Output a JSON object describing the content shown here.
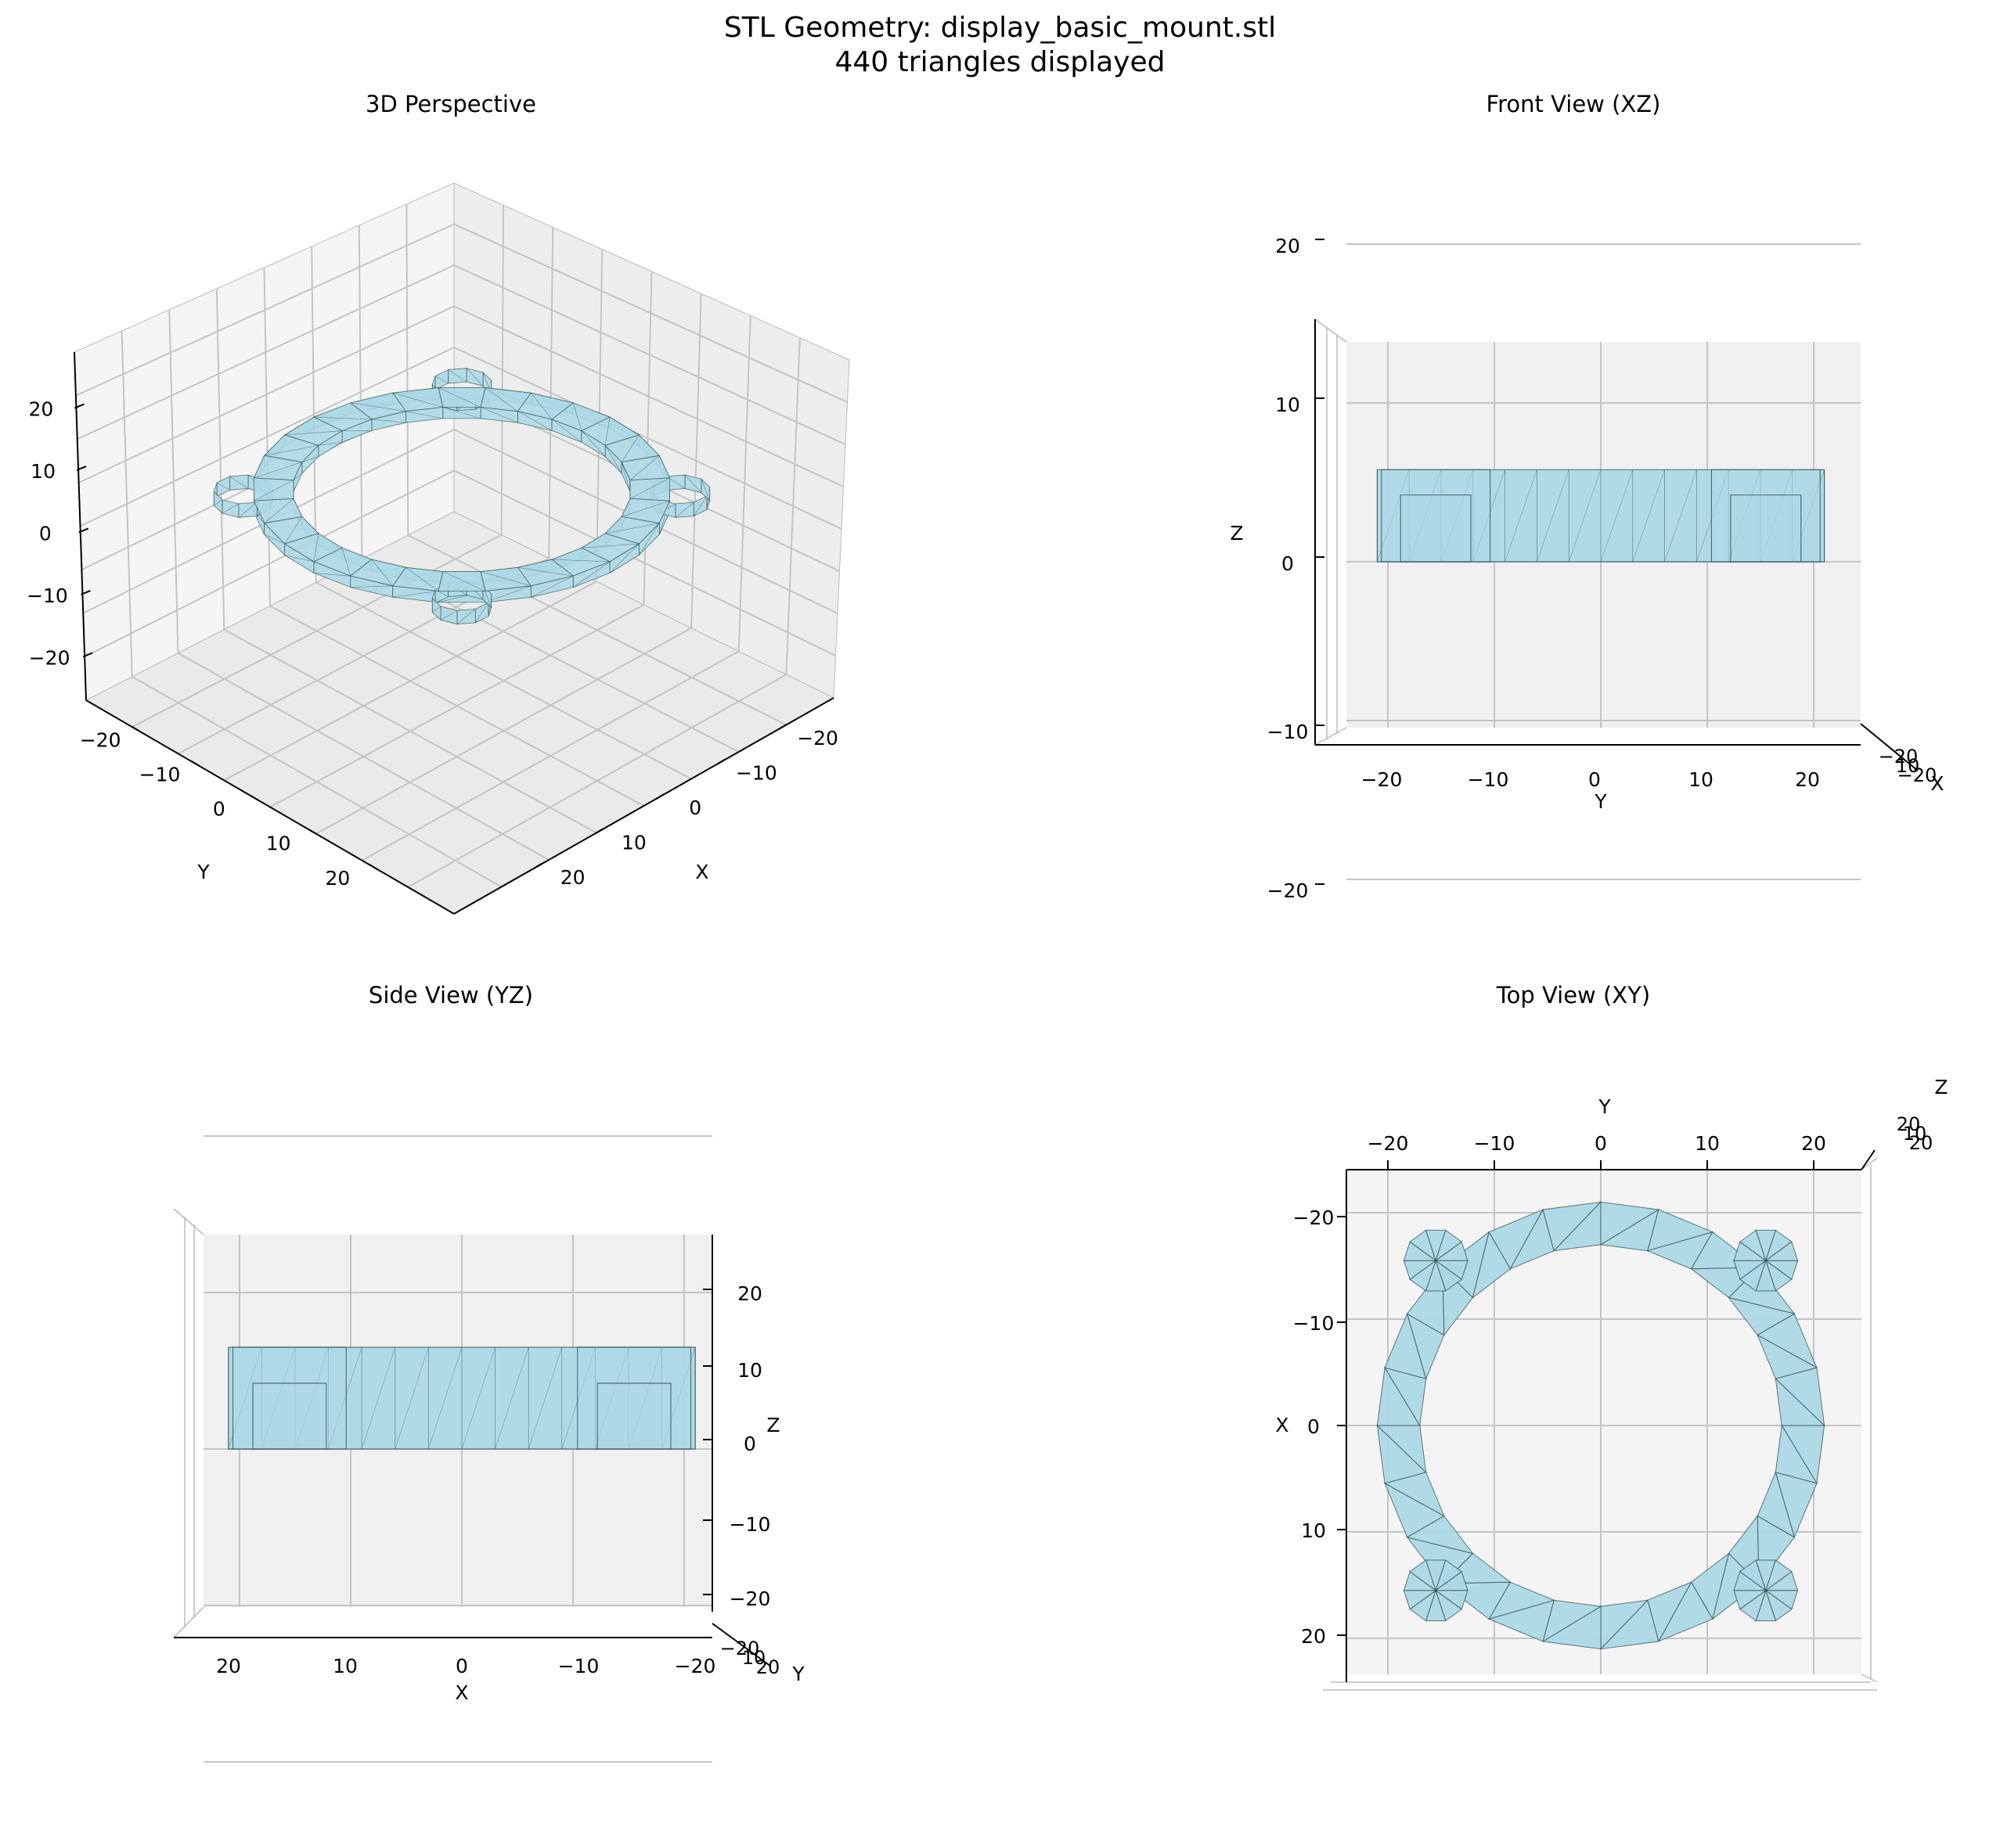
{
  "figure": {
    "title_line1": "STL Geometry: display_basic_mount.stl",
    "title_line2": "440 triangles displayed",
    "mesh_color": "#add8e6",
    "edge_color": "#2f4f4f"
  },
  "panels": {
    "perspective": {
      "title": "3D Perspective",
      "x_label": "X",
      "y_label": "Y",
      "z_label": "",
      "x_ticks": [
        "−20",
        "−10",
        "0",
        "10",
        "20"
      ],
      "y_ticks": [
        "−20",
        "−10",
        "0",
        "10",
        "20"
      ],
      "z_ticks": [
        "20",
        "10",
        "0",
        "−10",
        "−20"
      ]
    },
    "front": {
      "title": "Front View (XZ)",
      "h_label": "Y",
      "v_label": "Z",
      "depth_label": "X",
      "h_ticks": [
        "−20",
        "−10",
        "0",
        "10",
        "20"
      ],
      "v_ticks": [
        "20",
        "10",
        "0",
        "−10",
        "−20"
      ],
      "depth_ticks": [
        "−20",
        "10",
        "−20"
      ]
    },
    "side": {
      "title": "Side View (YZ)",
      "h_label": "X",
      "v_label": "Z",
      "depth_label": "Y",
      "h_ticks": [
        "20",
        "10",
        "0",
        "−10",
        "−20"
      ],
      "v_ticks": [
        "20",
        "10",
        "0",
        "−10",
        "−20"
      ],
      "depth_ticks": [
        "−20",
        "10",
        "20"
      ]
    },
    "top": {
      "title": "Top View (XY)",
      "h_label": "Y",
      "v_label": "X",
      "depth_label": "Z",
      "h_ticks": [
        "−20",
        "−10",
        "0",
        "10",
        "20"
      ],
      "v_ticks": [
        "−20",
        "−10",
        "0",
        "10",
        "20"
      ],
      "depth_ticks": [
        "20",
        "10",
        "20"
      ]
    }
  },
  "geometry": {
    "ring_outer_radius": 21,
    "ring_inner_radius": 17,
    "ring_z_min": 0,
    "ring_z_max": 5,
    "boss_radius": 3,
    "axis_range": [
      -25,
      25
    ]
  }
}
